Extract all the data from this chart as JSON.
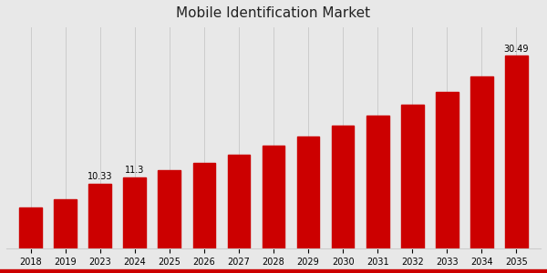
{
  "title": "Mobile Identification Market",
  "categories": [
    "2018",
    "2019",
    "2023",
    "2024",
    "2025",
    "2026",
    "2027",
    "2028",
    "2029",
    "2030",
    "2031",
    "2032",
    "2033",
    "2034",
    "2035"
  ],
  "values": [
    6.5,
    7.8,
    10.33,
    11.3,
    12.4,
    13.6,
    14.9,
    16.3,
    17.8,
    19.4,
    21.0,
    22.8,
    24.8,
    27.2,
    30.49
  ],
  "bar_color": "#cc0000",
  "annotated_bars": {
    "2023": "10.33",
    "2024": "11.3",
    "2035": "30.49"
  },
  "background_color": "#e8e8e8",
  "title_fontsize": 11,
  "label_fontsize": 7.5,
  "tick_fontsize": 7,
  "ylim": [
    0,
    35
  ],
  "annotation_fontsize": 7,
  "bottom_bar_color": "#cc0000",
  "grid_color": "#cccccc",
  "spine_color": "#cccccc"
}
